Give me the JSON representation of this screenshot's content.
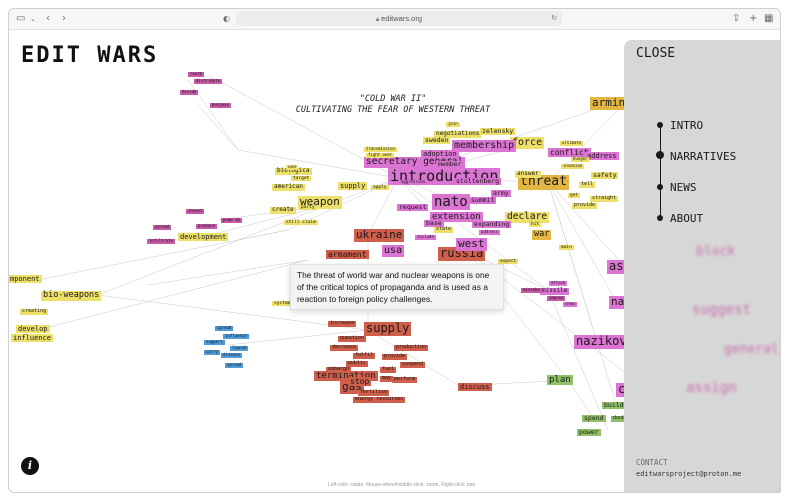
{
  "browser": {
    "url": "editwars.org",
    "sidebar_icon": "sidebar-icon",
    "back_icon": "chevron-left-icon",
    "forward_icon": "chevron-right-icon",
    "share_icon": "share-icon",
    "newtab_icon": "plus-icon",
    "tabs_icon": "tabs-grid-icon"
  },
  "site": {
    "title": "EDIT WARS",
    "subtitle_line1": "\"COLD WAR II\"",
    "subtitle_line2": "CULTIVATING THE FEAR OF WESTERN THREAT"
  },
  "graph_nodes": {
    "arming": "arming",
    "force": "force",
    "threat": "threat",
    "introduction": "introduction",
    "nato": "nato",
    "membership": "membership",
    "secretary_general": "secretary general",
    "weapon": "weapon",
    "ukraine": "ukraine",
    "russia": "russia",
    "usa": "usa",
    "west": "west",
    "armament": "armament",
    "declare": "declare",
    "extension": "extension",
    "conflict": "conflict",
    "war": "war",
    "supply": "supply",
    "bio_weapons": "bio-weapons",
    "development": "development",
    "plan": "plan",
    "termination": "termination",
    "gas": "gas",
    "develop": "develop",
    "influence": "influence",
    "component": "mponent",
    "negotiations": "negotiations",
    "sweden": "sweden",
    "adoption": "adoption",
    "stoltenberg": "stoltenberg",
    "answer": "answer",
    "address": "address",
    "safety": "safety",
    "build": "build",
    "spend": "spend",
    "power": "power",
    "biological": "biologica",
    "american": "american",
    "create": "create",
    "missile": "missile",
    "discuss": "discuss",
    "stop": "stop",
    "member": "member",
    "summit": "summit",
    "request": "request",
    "expanding": "expanding",
    "army": "army",
    "zelensky": "zelensky",
    "base": "base",
    "state": "state",
    "assign_left": "as",
    "natovets_left": "natovets",
    "nazikov": "nazikov",
    "call": "call"
  },
  "tooltip": {
    "text": "The threat of world war and nuclear weapons is one of the critical topics of propaganda and is used as a reaction to foreign policy challenges."
  },
  "panel": {
    "close_label": "CLOSE",
    "nav": [
      "INTRO",
      "NARRATIVES",
      "NEWS",
      "ABOUT"
    ],
    "active_nav": "NARRATIVES",
    "blurred_words": [
      "block",
      "suggest",
      "general",
      "assign"
    ],
    "contact_label": "CONTACT",
    "contact_email": "editwarsproject@proton.me"
  },
  "footer": {
    "info_icon": "info-icon",
    "hint": "Left-click: rotate, Mouse-wheel/middle-click: zoom, Right-click: pan"
  },
  "colors": {
    "yellow": "#ecdf6a",
    "orange": "#e3b644",
    "pink": "#dc74d4",
    "red": "#cf5e4b",
    "green": "#8fc068",
    "blue": "#4f9ad9",
    "panel": "#d7d7d7"
  }
}
